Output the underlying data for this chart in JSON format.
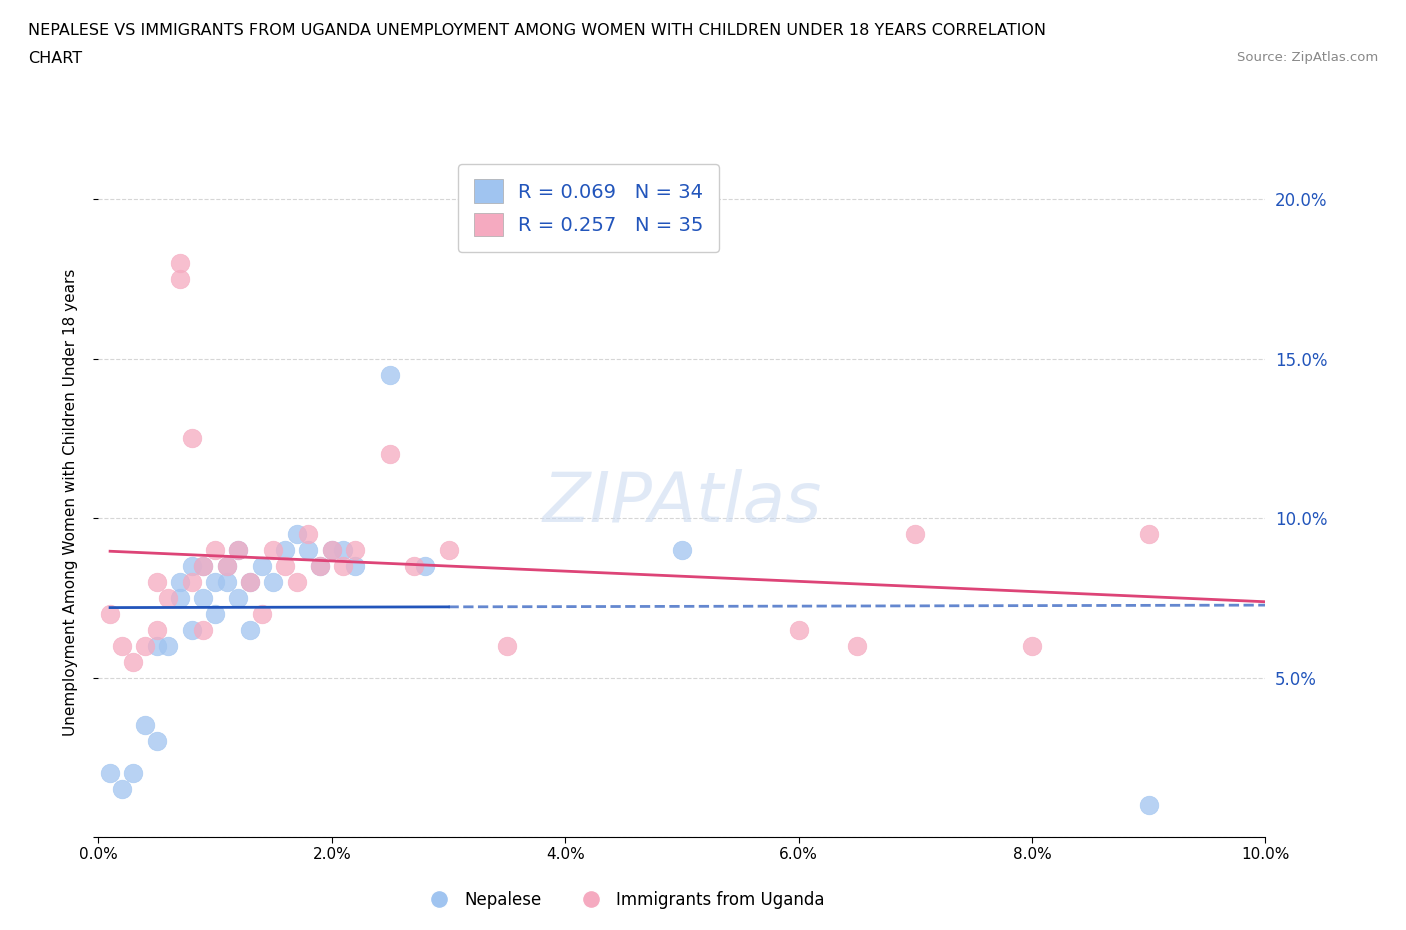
{
  "title_line1": "NEPALESE VS IMMIGRANTS FROM UGANDA UNEMPLOYMENT AMONG WOMEN WITH CHILDREN UNDER 18 YEARS CORRELATION",
  "title_line2": "CHART",
  "source": "Source: ZipAtlas.com",
  "ylabel": "Unemployment Among Women with Children Under 18 years",
  "legend_label1": "Nepalese",
  "legend_label2": "Immigrants from Uganda",
  "R1": 0.069,
  "N1": 34,
  "R2": 0.257,
  "N2": 35,
  "color_blue": "#a0c4f0",
  "color_pink": "#f5aac0",
  "line_blue": "#2255bb",
  "line_pink": "#dd4477",
  "background": "#ffffff",
  "xlim": [
    0.0,
    0.1
  ],
  "ylim": [
    0.0,
    0.21
  ],
  "xticks": [
    0.0,
    0.02,
    0.04,
    0.06,
    0.08,
    0.1
  ],
  "yticks": [
    0.0,
    0.05,
    0.1,
    0.15,
    0.2
  ],
  "xtick_labels": [
    "0.0%",
    "2.0%",
    "4.0%",
    "6.0%",
    "8.0%",
    "10.0%"
  ],
  "ytick_labels": [
    "",
    "5.0%",
    "10.0%",
    "15.0%",
    "20.0%"
  ],
  "blue_x": [
    0.001,
    0.002,
    0.003,
    0.004,
    0.005,
    0.005,
    0.006,
    0.007,
    0.007,
    0.008,
    0.008,
    0.009,
    0.009,
    0.01,
    0.01,
    0.011,
    0.011,
    0.012,
    0.012,
    0.013,
    0.013,
    0.014,
    0.015,
    0.016,
    0.017,
    0.018,
    0.019,
    0.02,
    0.021,
    0.022,
    0.025,
    0.028,
    0.05,
    0.09
  ],
  "blue_y": [
    0.02,
    0.015,
    0.02,
    0.035,
    0.03,
    0.06,
    0.06,
    0.08,
    0.075,
    0.085,
    0.065,
    0.075,
    0.085,
    0.08,
    0.07,
    0.085,
    0.08,
    0.09,
    0.075,
    0.08,
    0.065,
    0.085,
    0.08,
    0.09,
    0.095,
    0.09,
    0.085,
    0.09,
    0.09,
    0.085,
    0.145,
    0.085,
    0.09,
    0.01
  ],
  "pink_x": [
    0.001,
    0.002,
    0.003,
    0.004,
    0.005,
    0.005,
    0.006,
    0.007,
    0.007,
    0.008,
    0.008,
    0.009,
    0.009,
    0.01,
    0.011,
    0.012,
    0.013,
    0.014,
    0.015,
    0.016,
    0.017,
    0.018,
    0.019,
    0.02,
    0.021,
    0.022,
    0.025,
    0.027,
    0.03,
    0.035,
    0.06,
    0.065,
    0.07,
    0.08,
    0.09
  ],
  "pink_y": [
    0.07,
    0.06,
    0.055,
    0.06,
    0.08,
    0.065,
    0.075,
    0.175,
    0.18,
    0.125,
    0.08,
    0.085,
    0.065,
    0.09,
    0.085,
    0.09,
    0.08,
    0.07,
    0.09,
    0.085,
    0.08,
    0.095,
    0.085,
    0.09,
    0.085,
    0.09,
    0.12,
    0.085,
    0.09,
    0.06,
    0.065,
    0.06,
    0.095,
    0.06,
    0.095
  ]
}
